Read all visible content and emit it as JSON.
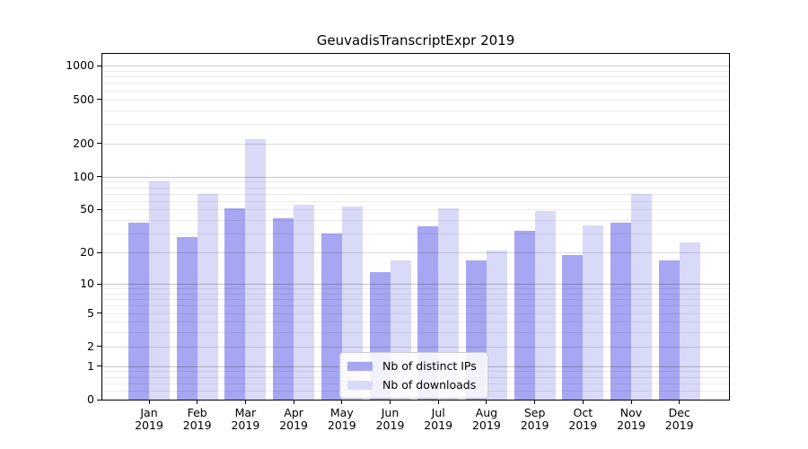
{
  "chart_data": {
    "type": "bar",
    "title": "GeuvadisTranscriptExpr 2019",
    "categories": [
      "Jan 2019",
      "Feb 2019",
      "Mar 2019",
      "Apr 2019",
      "May 2019",
      "Jun 2019",
      "Jul 2019",
      "Aug 2019",
      "Sep 2019",
      "Oct 2019",
      "Nov 2019",
      "Dec 2019"
    ],
    "series": [
      {
        "name": "Nb of distinct IPs",
        "color": "#a6a6f2",
        "key": "distinct-ips",
        "values": [
          38,
          28,
          51,
          42,
          30,
          13,
          35,
          17,
          32,
          19,
          38,
          17
        ]
      },
      {
        "name": "Nb of downloads",
        "color": "#d9d9f8",
        "key": "downloads",
        "values": [
          91,
          69,
          220,
          55,
          53,
          17,
          51,
          21,
          49,
          36,
          69,
          25
        ]
      }
    ],
    "y_axis": {
      "scale": "log10(value+1)",
      "ticks": [
        0,
        1,
        2,
        5,
        10,
        20,
        50,
        100,
        200,
        500,
        1000
      ],
      "range": [
        0,
        1260
      ],
      "major_gridlines": [
        1,
        10,
        100,
        1000
      ],
      "minor_gridlines": [
        0.2,
        0.4,
        0.6,
        0.8,
        2,
        3,
        4,
        6,
        7,
        8,
        9,
        20,
        30,
        40,
        60,
        70,
        80,
        90,
        200,
        300,
        400,
        600,
        700,
        800,
        900
      ],
      "labeled_minor_gridlines": [
        2,
        5,
        20,
        50,
        200,
        500
      ]
    },
    "x_axis": {
      "tick_label_format": "month over year, two lines"
    },
    "legend": {
      "position": "lower center"
    },
    "colors": {
      "minor_grid": "rgba(0,0,0,0.08)",
      "major_grid": "rgba(0,0,0,0.22)",
      "axis": "#000000",
      "text": "#000000",
      "background": "#ffffff"
    },
    "grid": "horizontal"
  }
}
